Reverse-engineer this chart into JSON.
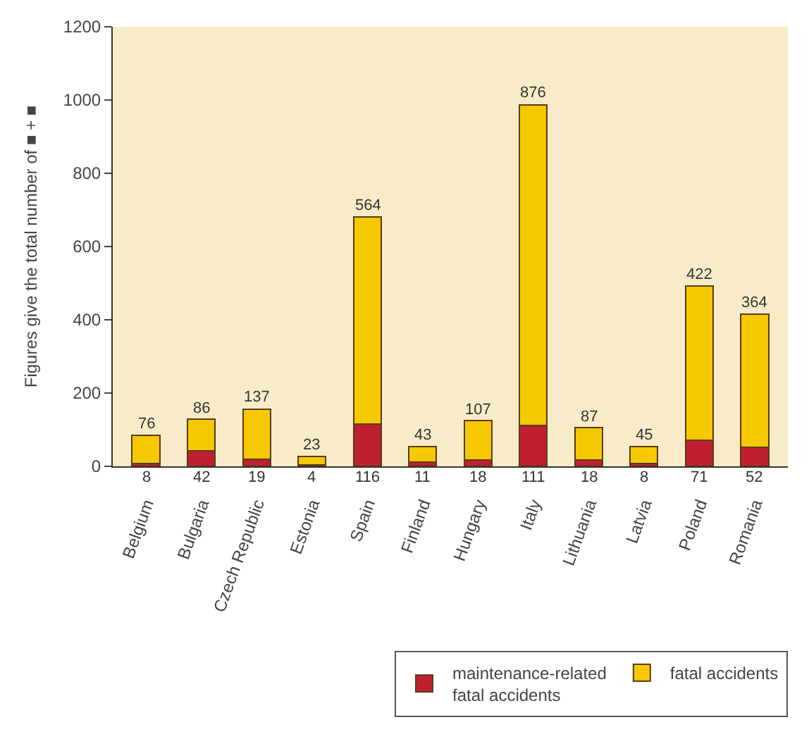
{
  "chart_data": {
    "type": "bar",
    "stacked": true,
    "ylabel": "Figures give the total number of ■ + ■",
    "categories": [
      "Belgium",
      "Bulgaria",
      "Czech Republic",
      "Estonia",
      "Spain",
      "Finland",
      "Hungary",
      "Italy",
      "Lithuania",
      "Latvia",
      "Poland",
      "Romania"
    ],
    "series": [
      {
        "name": "maintenance-related\nfatal accidents",
        "color": "#c0202e",
        "values": [
          8,
          42,
          19,
          4,
          116,
          11,
          18,
          111,
          18,
          8,
          71,
          52
        ]
      },
      {
        "name": "fatal accidents",
        "color": "#f5c800",
        "values": [
          76,
          86,
          137,
          23,
          564,
          43,
          107,
          876,
          87,
          45,
          422,
          364
        ]
      }
    ],
    "ylim": [
      0,
      1200
    ],
    "yticks": [
      0,
      200,
      400,
      600,
      800,
      1000,
      1200
    ],
    "data_labels": true,
    "grid": false,
    "legend": "bottom right"
  }
}
